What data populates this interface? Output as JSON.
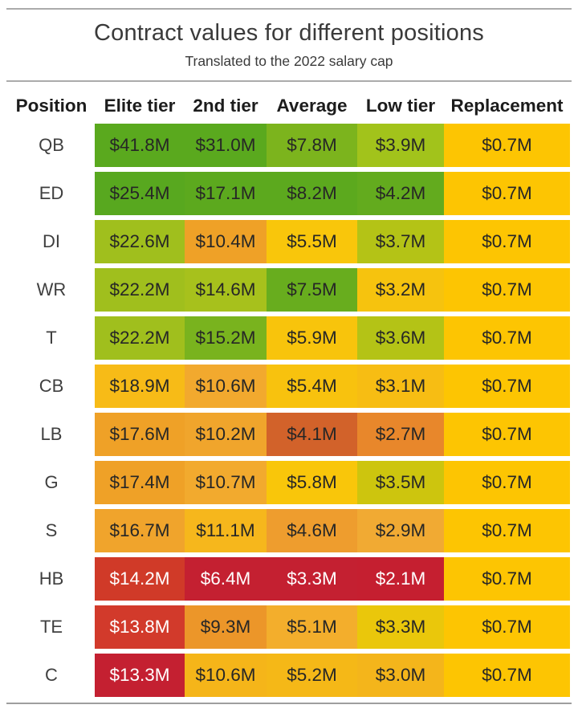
{
  "chart_data": {
    "type": "heatmap",
    "title": "Contract values for different positions",
    "subtitle": "Translated to the 2022 salary cap",
    "columns": [
      "Position",
      "Elite tier",
      "2nd tier",
      "Average",
      "Low tier",
      "Replacement"
    ],
    "unit": "millions of dollars (2022 salary cap)",
    "default_text_color": "#262626",
    "legend": "cell color encodes value from green (high) through yellow/orange to red (low); Replacement column uniform gold",
    "rows": [
      {
        "position": "QB",
        "values": [
          41.8,
          31.0,
          7.8,
          3.9,
          0.7
        ],
        "labels": [
          "$41.8M",
          "$31.0M",
          "$7.8M",
          "$3.9M",
          "$0.7M"
        ],
        "colors": [
          "#5aa91e",
          "#5aa91e",
          "#7cb41d",
          "#a2c31b",
          "#fdc502"
        ]
      },
      {
        "position": "ED",
        "values": [
          25.4,
          17.1,
          8.2,
          4.2,
          0.7
        ],
        "labels": [
          "$25.4M",
          "$17.1M",
          "$8.2M",
          "$4.2M",
          "$0.7M"
        ],
        "colors": [
          "#58a81f",
          "#5ca91e",
          "#5ca91e",
          "#63ab1e",
          "#fdc502"
        ]
      },
      {
        "position": "DI",
        "values": [
          22.6,
          10.4,
          5.5,
          3.7,
          0.7
        ],
        "labels": [
          "$22.6M",
          "$10.4M",
          "$5.5M",
          "$3.7M",
          "$0.7M"
        ],
        "colors": [
          "#a0bf1d",
          "#efa127",
          "#f9c60b",
          "#b4c316",
          "#fdc502"
        ]
      },
      {
        "position": "WR",
        "values": [
          22.2,
          14.6,
          7.5,
          3.2,
          0.7
        ],
        "labels": [
          "$22.2M",
          "$14.6M",
          "$7.5M",
          "$3.2M",
          "$0.7M"
        ],
        "colors": [
          "#a0bf1d",
          "#a7c11c",
          "#68ad1e",
          "#f6c30e",
          "#fdc502"
        ]
      },
      {
        "position": "T",
        "values": [
          22.2,
          15.2,
          5.9,
          3.6,
          0.7
        ],
        "labels": [
          "$22.2M",
          "$15.2M",
          "$5.9M",
          "$3.6M",
          "$0.7M"
        ],
        "colors": [
          "#a0bf1d",
          "#79b31e",
          "#f8c40c",
          "#b4c316",
          "#fdc502"
        ]
      },
      {
        "position": "CB",
        "values": [
          18.9,
          10.6,
          5.4,
          3.1,
          0.7
        ],
        "labels": [
          "$18.9M",
          "$10.6M",
          "$5.4M",
          "$3.1M",
          "$0.7M"
        ],
        "colors": [
          "#f7bb17",
          "#f2a92e",
          "#f8c20e",
          "#f7bd13",
          "#fdc502"
        ]
      },
      {
        "position": "LB",
        "values": [
          17.6,
          10.2,
          4.1,
          2.7,
          0.7
        ],
        "labels": [
          "$17.6M",
          "$10.2M",
          "$4.1M",
          "$2.7M",
          "$0.7M"
        ],
        "colors": [
          "#efa127",
          "#f0a52c",
          "#d2622a",
          "#e8872b",
          "#fdc502"
        ]
      },
      {
        "position": "G",
        "values": [
          17.4,
          10.7,
          5.8,
          3.5,
          0.7
        ],
        "labels": [
          "$17.4M",
          "$10.7M",
          "$5.8M",
          "$3.5M",
          "$0.7M"
        ],
        "colors": [
          "#efa127",
          "#f2aa2e",
          "#f9c60a",
          "#cdc50e",
          "#fdc502"
        ]
      },
      {
        "position": "S",
        "values": [
          16.7,
          11.1,
          4.6,
          2.9,
          0.7
        ],
        "labels": [
          "$16.7M",
          "$11.1M",
          "$4.6M",
          "$2.9M",
          "$0.7M"
        ],
        "colors": [
          "#f0a42c",
          "#f6b71c",
          "#ee9d2e",
          "#f1aa33",
          "#fdc502"
        ]
      },
      {
        "position": "HB",
        "values": [
          14.2,
          6.4,
          3.3,
          2.1,
          0.7
        ],
        "labels": [
          "$14.2M",
          "$6.4M",
          "$3.3M",
          "$2.1M",
          "$0.7M"
        ],
        "colors": [
          "#d03a28",
          "#c42031",
          "#c42031",
          "#c51f30",
          "#fdc502"
        ],
        "text": [
          "#ffffff",
          "#ffffff",
          "#ffffff",
          "#ffffff",
          null
        ]
      },
      {
        "position": "TE",
        "values": [
          13.8,
          9.3,
          5.1,
          3.3,
          0.7
        ],
        "labels": [
          "$13.8M",
          "$9.3M",
          "$5.1M",
          "$3.3M",
          "$0.7M"
        ],
        "colors": [
          "#d23a2b",
          "#ec9629",
          "#f3ae2c",
          "#eac70b",
          "#fdc502"
        ],
        "text": [
          "#ffffff",
          null,
          null,
          null,
          null
        ]
      },
      {
        "position": "C",
        "values": [
          13.3,
          10.6,
          5.2,
          3.0,
          0.7
        ],
        "labels": [
          "$13.3M",
          "$10.6M",
          "$5.2M",
          "$3.0M",
          "$0.7M"
        ],
        "colors": [
          "#c42031",
          "#f5b519",
          "#f5b817",
          "#f4b51b",
          "#fdc502"
        ],
        "text": [
          "#ffffff",
          null,
          null,
          null,
          null
        ]
      }
    ]
  }
}
